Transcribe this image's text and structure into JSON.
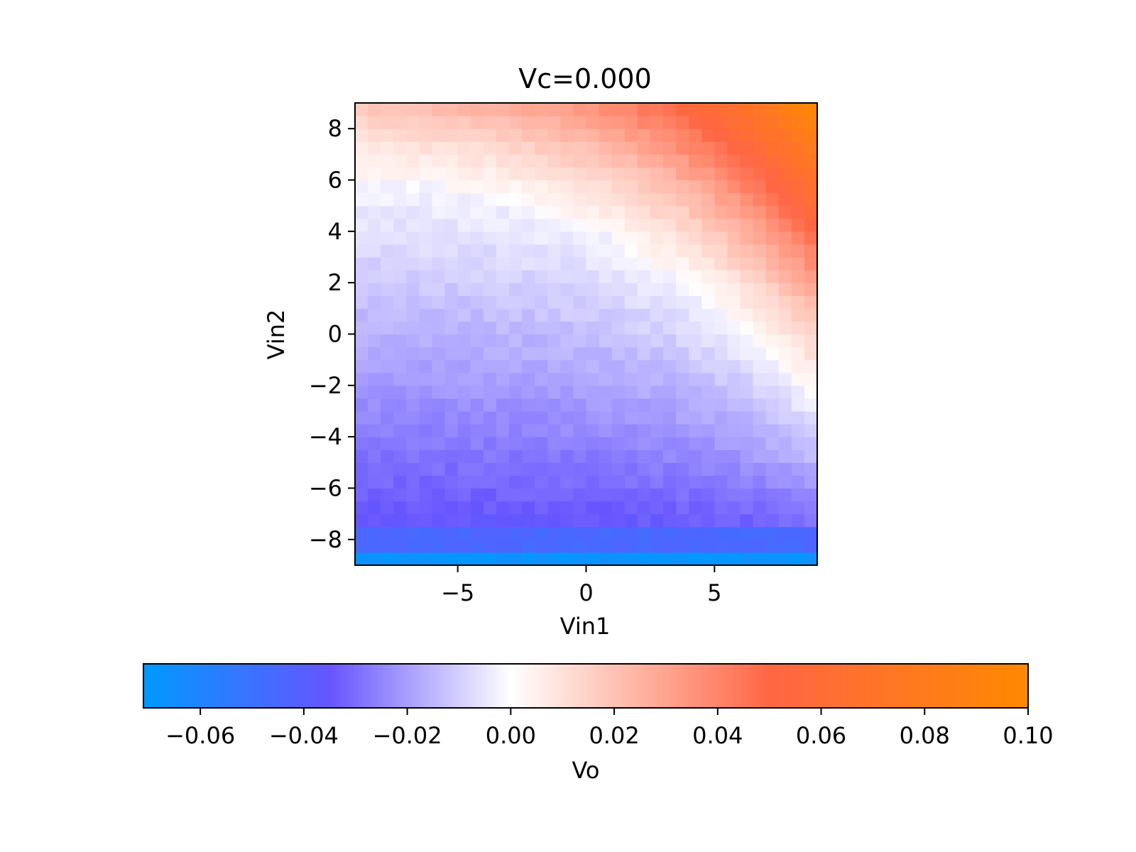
{
  "chart_data": {
    "type": "heatmap",
    "title": "Vc=0.000",
    "xlabel": "Vin1",
    "ylabel": "Vin2",
    "xlim": [
      -9,
      9
    ],
    "ylim": [
      -9,
      9
    ],
    "x_ticks": [
      -5,
      0,
      5
    ],
    "x_tick_labels": [
      "−5",
      "0",
      "5"
    ],
    "y_ticks": [
      -8,
      -6,
      -4,
      -2,
      0,
      2,
      4,
      6,
      8
    ],
    "y_tick_labels": [
      "−8",
      "−6",
      "−4",
      "−2",
      "0",
      "2",
      "4",
      "6",
      "8"
    ],
    "grid_resolution": 36,
    "colorbar": {
      "label": "Vo",
      "range": [
        -0.071,
        0.1
      ],
      "ticks": [
        -0.06,
        -0.04,
        -0.02,
        0.0,
        0.02,
        0.04,
        0.06,
        0.08,
        0.1
      ],
      "tick_labels": [
        "−0.06",
        "−0.04",
        "−0.02",
        "0.00",
        "0.02",
        "0.04",
        "0.06",
        "0.08",
        "0.10"
      ],
      "orientation": "horizontal",
      "placement": "bottom",
      "colors": [
        {
          "value": -0.071,
          "color": "#0099ff"
        },
        {
          "value": -0.035,
          "color": "#6655ff"
        },
        {
          "value": 0.0,
          "color": "#ffffff"
        },
        {
          "value": 0.05,
          "color": "#ff6644"
        },
        {
          "value": 0.1,
          "color": "#ff8800"
        }
      ]
    },
    "surface_model": {
      "description_values": {
        "bottom_row_Vo": -0.068,
        "near_bottom_Vo": -0.045,
        "lower_band_Vo": -0.035,
        "center_Vo": -0.012,
        "upper_left_Vo": 0.012,
        "top_right_corner_Vo": 0.1
      }
    }
  }
}
